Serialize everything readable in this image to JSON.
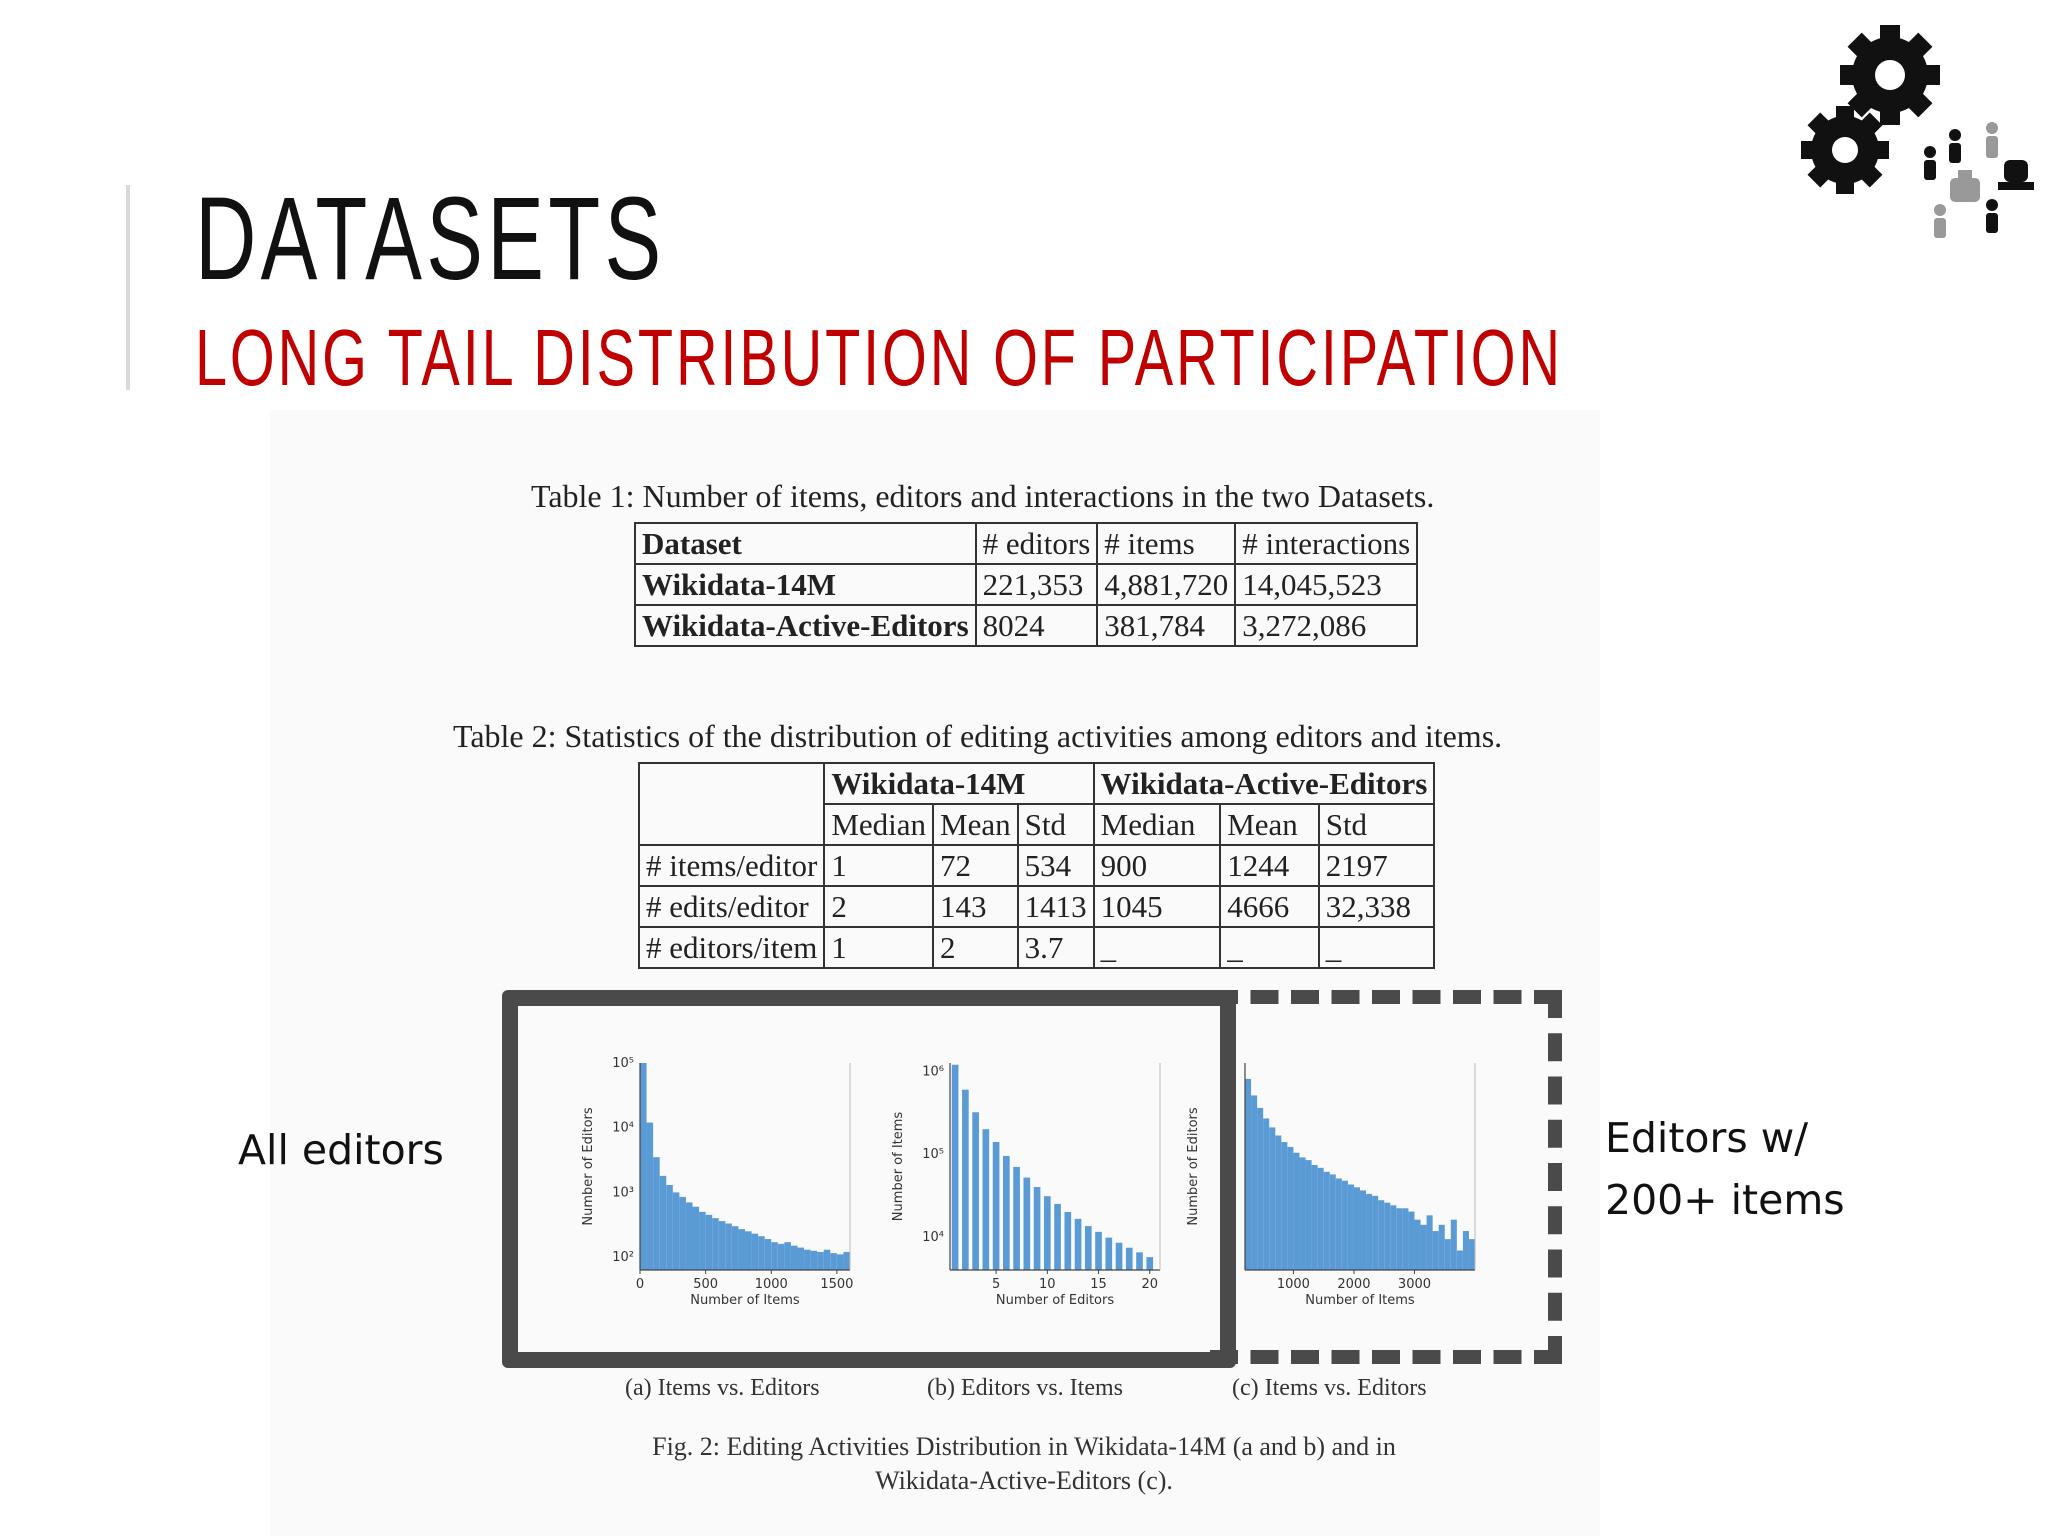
{
  "slide": {
    "title": "DATASETS",
    "subtitle": "LONG TAIL DISTRIBUTION OF PARTICIPATION",
    "accent_color": "#c00000",
    "logo_icon": "gears-and-people-icon"
  },
  "table1": {
    "caption": "Table 1: Number of items, editors and interactions in the two Datasets.",
    "headers": [
      "Dataset",
      "# editors",
      "# items",
      "# interactions"
    ],
    "rows": [
      [
        "Wikidata-14M",
        "221,353",
        "4,881,720",
        "14,045,523"
      ],
      [
        "Wikidata-Active-Editors",
        "8024",
        "381,784",
        "3,272,086"
      ]
    ]
  },
  "table2": {
    "caption": "Table 2: Statistics of the distribution of editing activities among editors and items.",
    "group_headers": [
      "Wikidata-14M",
      "Wikidata-Active-Editors"
    ],
    "sub_headers": [
      "Median",
      "Mean",
      "Std",
      "Median",
      "Mean",
      "Std"
    ],
    "rows": [
      {
        "label": "# items/editor",
        "values": [
          "1",
          "72",
          "534",
          "900",
          "1244",
          "2197"
        ]
      },
      {
        "label": "# edits/editor",
        "values": [
          "2",
          "143",
          "1413",
          "1045",
          "4666",
          "32,338"
        ]
      },
      {
        "label": "# editors/item",
        "values": [
          "1",
          "2",
          "3.7",
          "_",
          "_",
          "_"
        ]
      }
    ]
  },
  "labels": {
    "all_editors": "All editors",
    "active_line1": "Editors w/",
    "active_line2": "200+ items"
  },
  "figure": {
    "sub_a": "(a) Items vs. Editors",
    "sub_b": "(b) Editors vs. Items",
    "sub_c": "(c) Items vs. Editors",
    "caption_line1": "Fig. 2: Editing Activities Distribution in Wikidata-14M (a and b) and in",
    "caption_line2": "Wikidata-Active-Editors (c)."
  },
  "chart_data": [
    {
      "type": "bar",
      "scale": "log",
      "bar_color": "#5b9bd5",
      "xlabel": "Number of Items",
      "ylabel": "Number of Editors",
      "xticks": [
        "0",
        "500",
        "1000",
        "1500"
      ],
      "yticks": [
        "10²",
        "10³",
        "10⁴",
        "10⁵"
      ],
      "xlim": [
        0,
        1600
      ],
      "ylim_exp": [
        1.8,
        5.0
      ],
      "x": [
        0,
        50,
        100,
        150,
        200,
        250,
        300,
        350,
        400,
        450,
        500,
        550,
        600,
        650,
        700,
        750,
        800,
        850,
        900,
        950,
        1000,
        1050,
        1100,
        1150,
        1200,
        1250,
        1300,
        1350,
        1400,
        1450,
        1500,
        1550
      ],
      "values": [
        100000,
        12000,
        3500,
        1800,
        1300,
        1000,
        850,
        700,
        600,
        500,
        450,
        400,
        360,
        330,
        300,
        270,
        250,
        230,
        210,
        190,
        170,
        160,
        170,
        150,
        140,
        130,
        125,
        120,
        130,
        115,
        110,
        120
      ]
    },
    {
      "type": "bar",
      "scale": "log",
      "bar_color": "#5b9bd5",
      "xlabel": "Number of Editors",
      "ylabel": "Number of Items",
      "xticks": [
        "5",
        "10",
        "15",
        "20"
      ],
      "yticks": [
        "10⁴",
        "10⁵",
        "10⁶"
      ],
      "xlim": [
        0.5,
        21
      ],
      "ylim_exp": [
        3.6,
        6.1
      ],
      "x": [
        1,
        2,
        3,
        4,
        5,
        6,
        7,
        8,
        9,
        10,
        11,
        12,
        13,
        14,
        15,
        16,
        17,
        18,
        19,
        20
      ],
      "values": [
        1200000,
        600000,
        320000,
        200000,
        140000,
        95000,
        70000,
        52000,
        40000,
        31000,
        25000,
        20000,
        16500,
        13500,
        11500,
        9800,
        8500,
        7400,
        6500,
        5700
      ]
    },
    {
      "type": "bar",
      "scale": "log",
      "bar_color": "#5b9bd5",
      "xlabel": "Number of Items",
      "ylabel": "Number of Editors",
      "xticks": [
        "1000",
        "2000",
        "3000"
      ],
      "yticks": [],
      "xlim": [
        200,
        4000
      ],
      "ylim_exp": [
        0,
        3.2
      ],
      "x": [
        200,
        300,
        400,
        500,
        600,
        700,
        800,
        900,
        1000,
        1100,
        1200,
        1300,
        1400,
        1500,
        1600,
        1700,
        1800,
        1900,
        2000,
        2100,
        2200,
        2300,
        2400,
        2500,
        2600,
        2700,
        2800,
        2900,
        3000,
        3100,
        3200,
        3300,
        3400,
        3500,
        3600,
        3700,
        3800,
        3900
      ],
      "values": [
        900,
        500,
        320,
        220,
        160,
        120,
        95,
        80,
        65,
        55,
        50,
        42,
        38,
        33,
        30,
        26,
        24,
        21,
        19,
        17,
        15,
        14,
        12,
        11,
        10,
        9,
        9,
        8,
        6,
        5,
        7,
        4,
        5,
        3,
        6,
        2,
        4,
        3
      ]
    }
  ]
}
